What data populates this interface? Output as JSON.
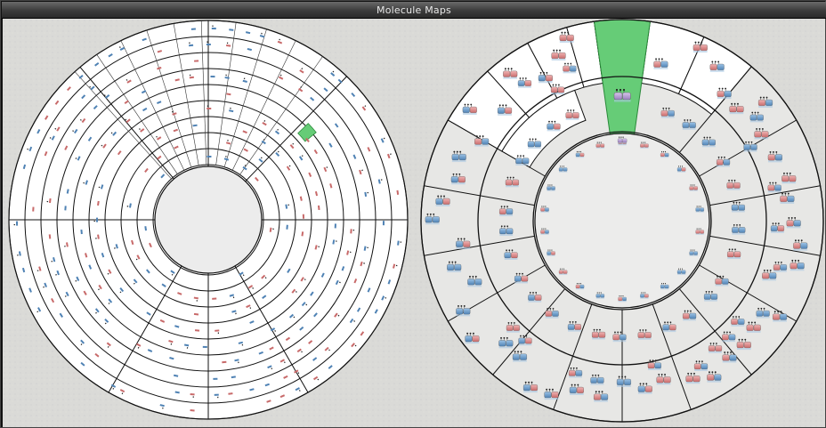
{
  "window": {
    "title": "Molecule Maps"
  },
  "colors": {
    "background": "#d9d9d6",
    "highlight": "#66cc77",
    "selected_molecule": "#b29ac9",
    "molecule_blue": "#6f9fc9",
    "molecule_red": "#d98a8a"
  },
  "maps": [
    {
      "name": "left-map",
      "highlighted_sector": "sector-top-right"
    },
    {
      "name": "right-map",
      "highlighted_sector": "sector-top"
    }
  ]
}
